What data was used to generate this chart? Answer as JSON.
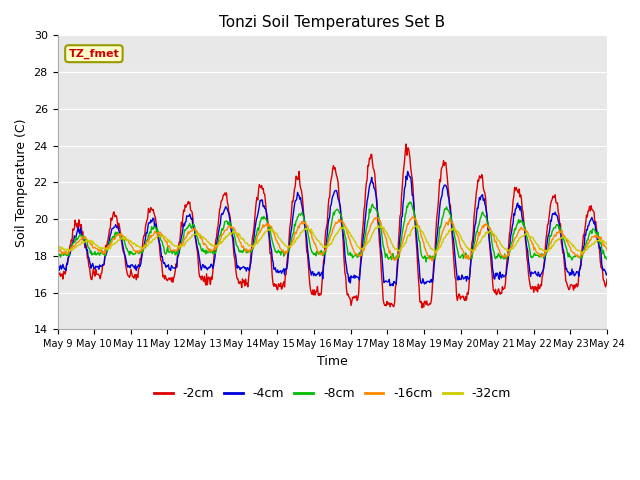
{
  "title": "Tonzi Soil Temperatures Set B",
  "xlabel": "Time",
  "ylabel": "Soil Temperature (C)",
  "ylim": [
    14,
    30
  ],
  "xlim": [
    0,
    15
  ],
  "plot_bg_color": "#e8e8e8",
  "fig_bg_color": "#ffffff",
  "annotation_text": "TZ_fmet",
  "annotation_bg": "#ffffcc",
  "annotation_border": "#999900",
  "series": [
    {
      "label": "-2cm",
      "color": "#dd0000",
      "linewidth": 1.0
    },
    {
      "label": "-4cm",
      "color": "#0000dd",
      "linewidth": 1.0
    },
    {
      "label": "-8cm",
      "color": "#00bb00",
      "linewidth": 1.0
    },
    {
      "label": "-16cm",
      "color": "#ff8800",
      "linewidth": 1.0
    },
    {
      "label": "-32cm",
      "color": "#cccc00",
      "linewidth": 1.0
    }
  ],
  "xtick_labels": [
    "May 9",
    "May 10",
    "May 11",
    "May 12",
    "May 13",
    "May 14",
    "May 15",
    "May 16",
    "May 17",
    "May 18",
    "May 19",
    "May 20",
    "May 21",
    "May 22",
    "May 23",
    "May 24"
  ],
  "xtick_positions": [
    0,
    1,
    2,
    3,
    4,
    5,
    6,
    7,
    8,
    9,
    10,
    11,
    12,
    13,
    14,
    15
  ],
  "ytick_positions": [
    14,
    16,
    18,
    20,
    22,
    24,
    26,
    28,
    30
  ],
  "grid_color": "#ffffff",
  "title_fontsize": 11,
  "axis_fontsize": 9,
  "tick_fontsize": 8
}
